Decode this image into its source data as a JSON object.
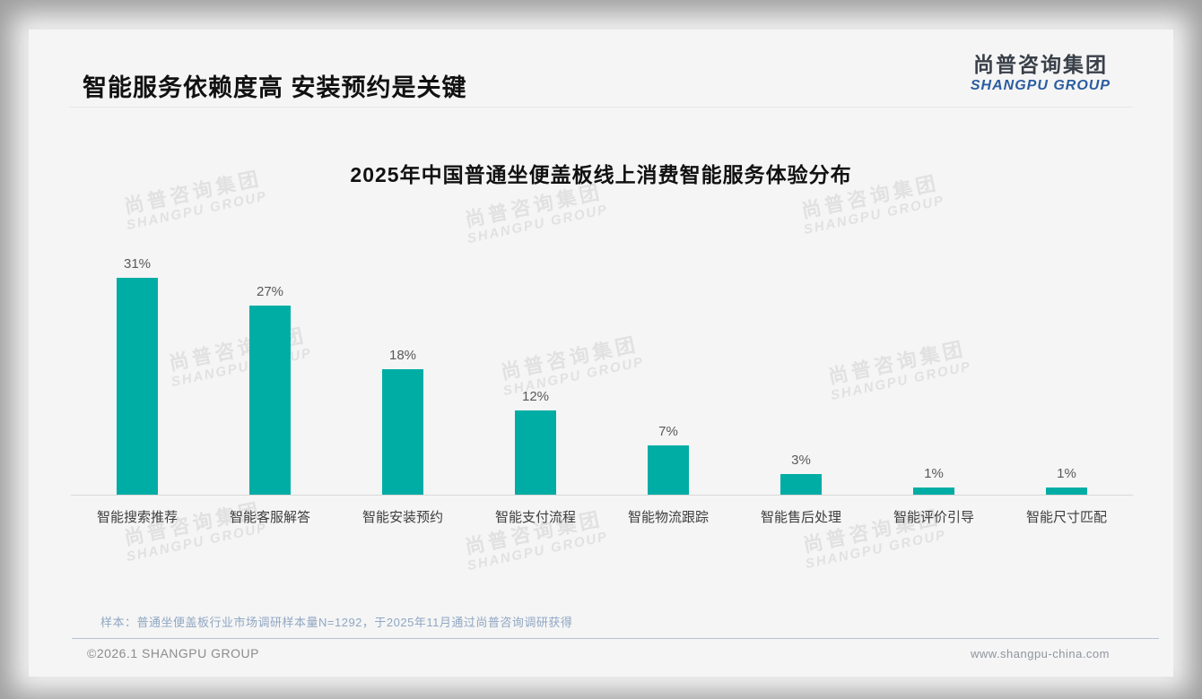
{
  "header": {
    "title": "智能服务依赖度高 安装预约是关键"
  },
  "logo": {
    "cn": "尚普咨询集团",
    "en": "SHANGPU GROUP"
  },
  "watermark": {
    "cn": "尚普咨询集团",
    "en": "SHANGPU GROUP"
  },
  "chart_data": {
    "type": "bar",
    "title": "2025年中国普通坐便盖板线上消费智能服务体验分布",
    "categories": [
      "智能搜索推荐",
      "智能客服解答",
      "智能安装预约",
      "智能支付流程",
      "智能物流跟踪",
      "智能售后处理",
      "智能评价引导",
      "智能尺寸匹配"
    ],
    "values": [
      31,
      27,
      18,
      12,
      7,
      3,
      1,
      1
    ],
    "value_labels": [
      "31%",
      "27%",
      "18%",
      "12%",
      "7%",
      "3%",
      "1%",
      "1%"
    ],
    "xlabel": "",
    "ylabel": "",
    "ylim": [
      0,
      33
    ],
    "grid": false,
    "legend": null,
    "bar_color": "#00ADA5"
  },
  "footnote": "样本：普通坐便盖板行业市场调研样本量N=1292，于2025年11月通过尚普咨询调研获得",
  "footer": {
    "left": "©2026.1 SHANGPU GROUP",
    "right": "www.shangpu-china.com"
  },
  "colors": {
    "bar": "#00ADA5",
    "logo_blue": "#2A5D9F",
    "footnote_blue": "#90A7C3",
    "card_bg": "#F5F5F5",
    "canvas_bg": "#9E9E9E"
  }
}
